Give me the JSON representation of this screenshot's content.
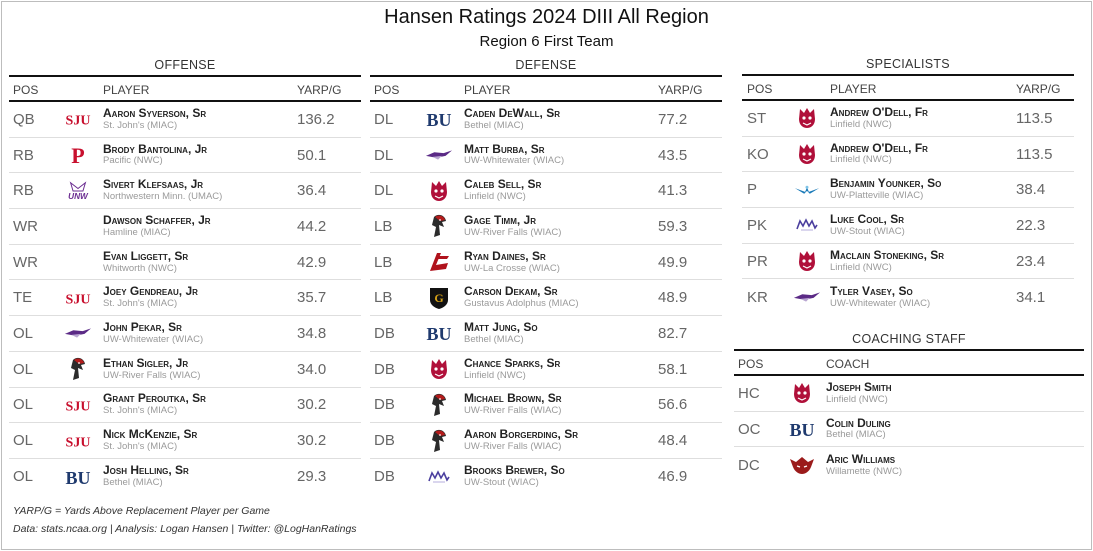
{
  "title": "Hansen Ratings 2024 DIII All Region",
  "subtitle": "Region 6 First Team",
  "offense": {
    "title": "OFFENSE",
    "headers": {
      "pos": "POS",
      "player": "PLAYER",
      "value": "YARP/G"
    },
    "rows": [
      {
        "pos": "QB",
        "name": "Aaron Syverson, Sr",
        "team": "St. John's (MIAC)",
        "value": "136.2",
        "logo": "sju"
      },
      {
        "pos": "RB",
        "name": "Brody Bantolina, Jr",
        "team": "Pacific (NWC)",
        "value": "50.1",
        "logo": "pacific"
      },
      {
        "pos": "RB",
        "name": "Sivert Klefsaas, Jr",
        "team": "Northwestern Minn. (UMAC)",
        "value": "36.4",
        "logo": "unw"
      },
      {
        "pos": "WR",
        "name": "Dawson Schaffer, Jr",
        "team": "Hamline (MIAC)",
        "value": "44.2",
        "logo": "hamline"
      },
      {
        "pos": "WR",
        "name": "Evan Liggett, Sr",
        "team": "Whitworth (NWC)",
        "value": "42.9",
        "logo": "whitworth"
      },
      {
        "pos": "TE",
        "name": "Joey Gendreau, Jr",
        "team": "St. John's (MIAC)",
        "value": "35.7",
        "logo": "sju"
      },
      {
        "pos": "OL",
        "name": "John Pekar, Sr",
        "team": "UW-Whitewater (WIAC)",
        "value": "34.8",
        "logo": "whitewater"
      },
      {
        "pos": "OL",
        "name": "Ethan Sigler, Jr",
        "team": "UW-River Falls (WIAC)",
        "value": "34.0",
        "logo": "riverfalls"
      },
      {
        "pos": "OL",
        "name": "Grant Peroutka, Sr",
        "team": "St. John's (MIAC)",
        "value": "30.2",
        "logo": "sju"
      },
      {
        "pos": "OL",
        "name": "Nick McKenzie, Sr",
        "team": "St. John's (MIAC)",
        "value": "30.2",
        "logo": "sju"
      },
      {
        "pos": "OL",
        "name": "Josh Helling, Sr",
        "team": "Bethel (MIAC)",
        "value": "29.3",
        "logo": "bethel"
      }
    ]
  },
  "defense": {
    "title": "DEFENSE",
    "headers": {
      "pos": "POS",
      "player": "PLAYER",
      "value": "YARP/G"
    },
    "rows": [
      {
        "pos": "DL",
        "name": "Caden DeWall, Sr",
        "team": "Bethel (MIAC)",
        "value": "77.2",
        "logo": "bethel"
      },
      {
        "pos": "DL",
        "name": "Matt Burba, Sr",
        "team": "UW-Whitewater (WIAC)",
        "value": "43.5",
        "logo": "whitewater"
      },
      {
        "pos": "DL",
        "name": "Caleb Sell, Sr",
        "team": "Linfield (NWC)",
        "value": "41.3",
        "logo": "linfield"
      },
      {
        "pos": "LB",
        "name": "Gage Timm, Jr",
        "team": "UW-River Falls (WIAC)",
        "value": "59.3",
        "logo": "riverfalls"
      },
      {
        "pos": "LB",
        "name": "Ryan Daines, Sr",
        "team": "UW-La Crosse (WIAC)",
        "value": "49.9",
        "logo": "lacrosse"
      },
      {
        "pos": "LB",
        "name": "Carson Dekam, Sr",
        "team": "Gustavus Adolphus (MIAC)",
        "value": "48.9",
        "logo": "gustavus"
      },
      {
        "pos": "DB",
        "name": "Matt Jung, So",
        "team": "Bethel (MIAC)",
        "value": "82.7",
        "logo": "bethel"
      },
      {
        "pos": "DB",
        "name": "Chance Sparks, Sr",
        "team": "Linfield (NWC)",
        "value": "58.1",
        "logo": "linfield"
      },
      {
        "pos": "DB",
        "name": "Michael Brown, Sr",
        "team": "UW-River Falls (WIAC)",
        "value": "56.6",
        "logo": "riverfalls"
      },
      {
        "pos": "DB",
        "name": "Aaron Borgerding, Sr",
        "team": "UW-River Falls (WIAC)",
        "value": "48.4",
        "logo": "riverfalls"
      },
      {
        "pos": "DB",
        "name": "Brooks Brewer, So",
        "team": "UW-Stout (WIAC)",
        "value": "46.9",
        "logo": "stout"
      }
    ]
  },
  "specialists": {
    "title": "SPECIALISTS",
    "headers": {
      "pos": "POS",
      "player": "PLAYER",
      "value": "YARP/G"
    },
    "rows": [
      {
        "pos": "ST",
        "name": "Andrew O'Dell, Fr",
        "team": "Linfield (NWC)",
        "value": "113.5",
        "logo": "linfield"
      },
      {
        "pos": "KO",
        "name": "Andrew O'Dell, Fr",
        "team": "Linfield (NWC)",
        "value": "113.5",
        "logo": "linfield"
      },
      {
        "pos": "P",
        "name": "Benjamin Younker, So",
        "team": "UW-Platteville (WIAC)",
        "value": "38.4",
        "logo": "platteville"
      },
      {
        "pos": "PK",
        "name": "Luke Cool, Sr",
        "team": "UW-Stout (WIAC)",
        "value": "22.3",
        "logo": "stout"
      },
      {
        "pos": "PR",
        "name": "Maclain Stoneking, Sr",
        "team": "Linfield (NWC)",
        "value": "23.4",
        "logo": "linfield"
      },
      {
        "pos": "KR",
        "name": "Tyler Vasey, So",
        "team": "UW-Whitewater (WIAC)",
        "value": "34.1",
        "logo": "whitewater"
      }
    ]
  },
  "coaching": {
    "title": "COACHING STAFF",
    "headers": {
      "pos": "POS",
      "coach": "COACH"
    },
    "rows": [
      {
        "pos": "HC",
        "name": "Joseph Smith",
        "team": "Linfield (NWC)",
        "logo": "linfield"
      },
      {
        "pos": "OC",
        "name": "Colin Duling",
        "team": "Bethel (MIAC)",
        "logo": "bethel"
      },
      {
        "pos": "DC",
        "name": "Aric Williams",
        "team": "Willamette (NWC)",
        "logo": "willamette"
      }
    ]
  },
  "logo_text": {
    "sju": "SJU",
    "pacific": "P",
    "unw": "UNW",
    "bethel": "BU",
    "gustavus": "G"
  },
  "footer": {
    "note": "YARP/G = Yards Above Replacement Player per Game",
    "credits": "Data: stats.ncaa.org | Analysis: Logan Hansen | Twitter: @LogHanRatings"
  },
  "colors": {
    "sju": "#c8102e",
    "pacific": "#c8102e",
    "unw": "#6b2c91",
    "bethel": "#1f3a6e",
    "linfield": "#b0103a",
    "whitewater": "#5b2a86",
    "riverfalls": "#b31b1b",
    "lacrosse": "#b0121c",
    "gustavus": "#d4a017",
    "stout": "#4b3f9e",
    "platteville": "#1a7ab8",
    "willamette": "#9b1b1b"
  }
}
